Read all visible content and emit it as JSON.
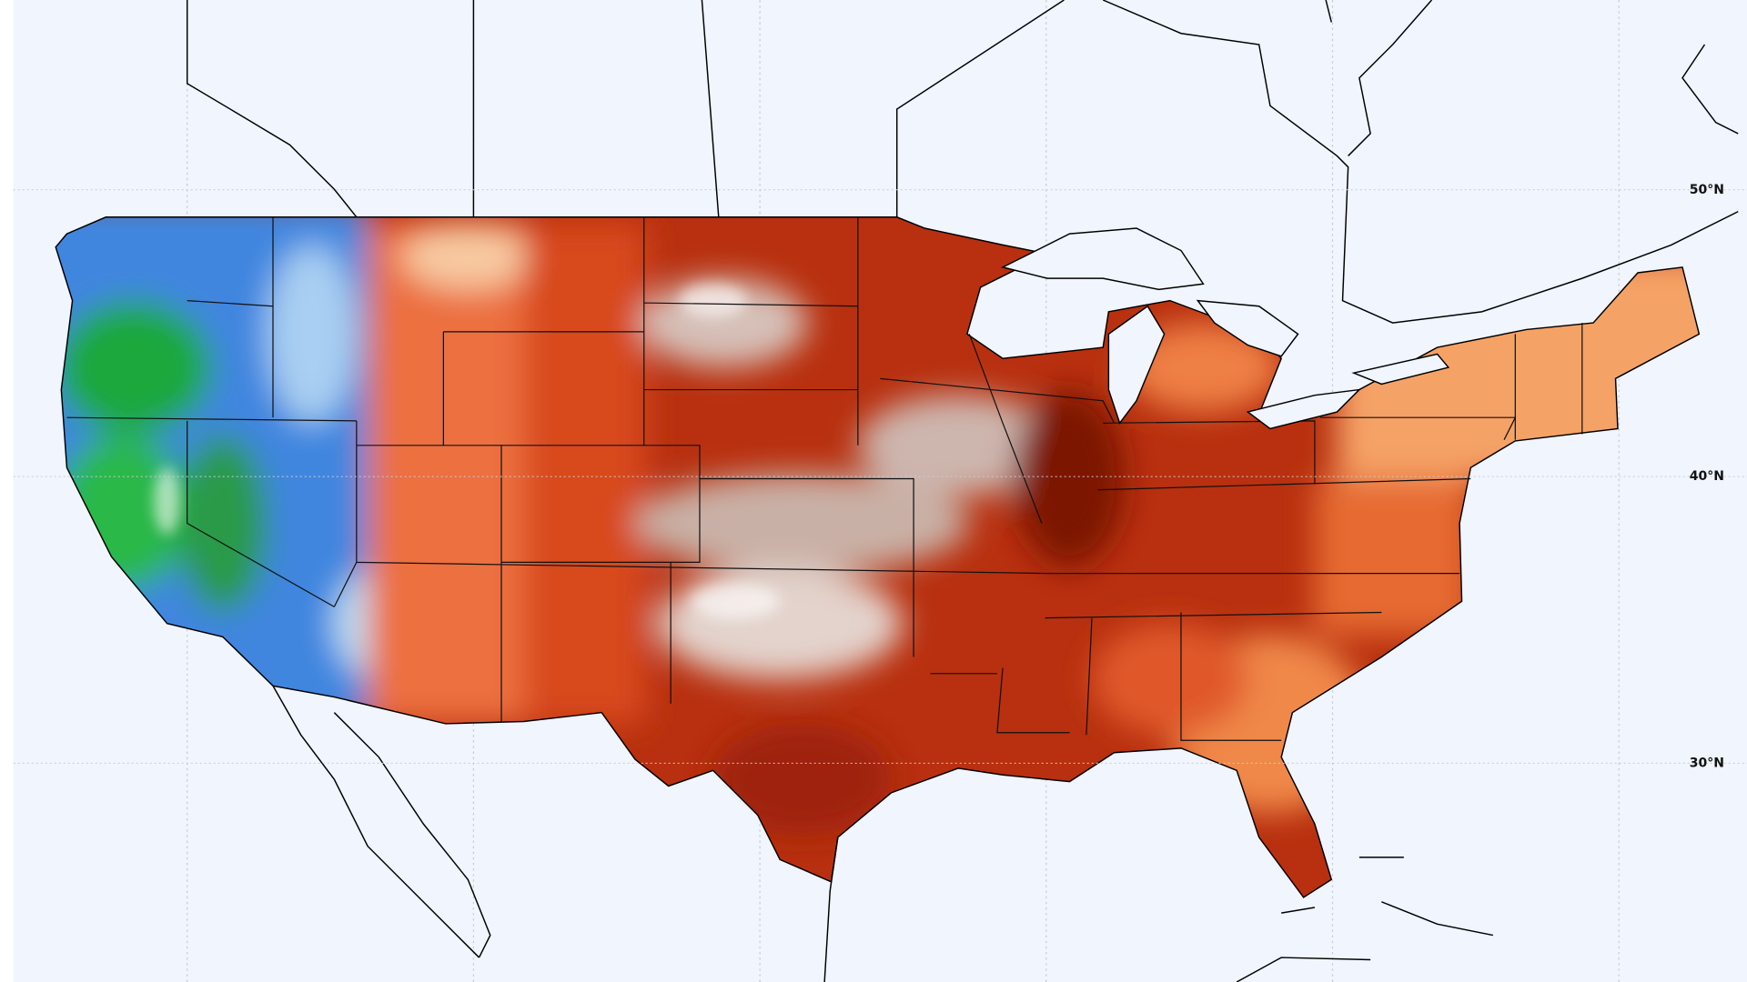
{
  "map": {
    "latitudes": [
      {
        "value": 50,
        "label": "50°N"
      },
      {
        "value": 40,
        "label": "40°N"
      },
      {
        "value": 30,
        "label": "30°N"
      }
    ]
  }
}
